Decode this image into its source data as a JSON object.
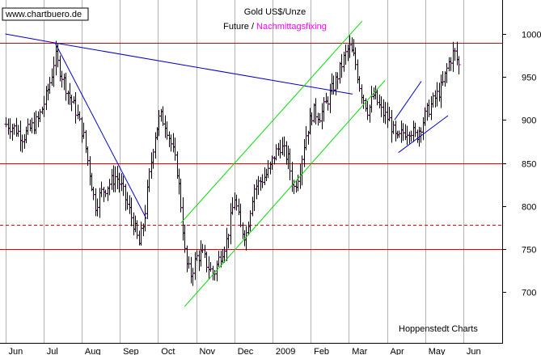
{
  "logo_text": "www.chartbuero.de",
  "credit": "Hoppenstedt Charts",
  "colors": {
    "background": "#ffffff",
    "grid": "#b4b4b4",
    "ohlc": "#000000",
    "close_marker": "#ff00ff",
    "hline": "#e00000",
    "trendline_blue": "#0000cc",
    "channel_green": "#00dd00"
  },
  "chart_data": {
    "type": "ohlc",
    "title_line1": "Gold US$/Unze",
    "title_line2_part1": "Future /",
    "title_line2_part2": "Nachmittagsfixing",
    "x_tick_labels": [
      "Jun",
      "Jul",
      "Aug",
      "Sep",
      "Oct",
      "Nov",
      "Dec",
      "2009",
      "Feb",
      "Mar",
      "Apr",
      "May",
      "Jun"
    ],
    "y_ticks": [
      700,
      750,
      800,
      850,
      900,
      950,
      1000
    ],
    "ylim": [
      640,
      1020
    ],
    "x_span_months": [
      0,
      12.6
    ],
    "grid": "vertical",
    "horizontal_levels": [
      {
        "value": 990,
        "style": "solid"
      },
      {
        "value": 850,
        "style": "solid"
      },
      {
        "value": 778,
        "style": "dashed"
      },
      {
        "value": 750,
        "style": "solid"
      }
    ],
    "trendlines": [
      {
        "color": "blue",
        "points": [
          [
            0.0,
            1000
          ],
          [
            1.25,
            990
          ],
          [
            9.1,
            930
          ]
        ]
      },
      {
        "color": "blue",
        "points": [
          [
            1.3,
            990
          ],
          [
            3.7,
            785
          ]
        ]
      },
      {
        "color": "blue",
        "points": [
          [
            10.2,
            900
          ],
          [
            10.9,
            945
          ]
        ]
      },
      {
        "color": "blue",
        "points": [
          [
            10.3,
            862
          ],
          [
            11.6,
            905
          ]
        ]
      },
      {
        "color": "green",
        "points": [
          [
            4.6,
            780
          ],
          [
            9.35,
            1015
          ]
        ]
      },
      {
        "color": "green",
        "points": [
          [
            4.7,
            683
          ],
          [
            9.95,
            946
          ]
        ]
      }
    ],
    "weekly_closes": [
      {
        "x": 0.05,
        "v": 895
      },
      {
        "x": 0.25,
        "v": 890
      },
      {
        "x": 0.45,
        "v": 880
      },
      {
        "x": 0.65,
        "v": 890
      },
      {
        "x": 0.85,
        "v": 900
      },
      {
        "x": 1.05,
        "v": 925
      },
      {
        "x": 1.2,
        "v": 950
      },
      {
        "x": 1.3,
        "v": 975
      },
      {
        "x": 1.45,
        "v": 955
      },
      {
        "x": 1.65,
        "v": 930
      },
      {
        "x": 1.85,
        "v": 910
      },
      {
        "x": 2.05,
        "v": 880
      },
      {
        "x": 2.2,
        "v": 840
      },
      {
        "x": 2.35,
        "v": 800
      },
      {
        "x": 2.5,
        "v": 815
      },
      {
        "x": 2.7,
        "v": 825
      },
      {
        "x": 2.9,
        "v": 835
      },
      {
        "x": 3.05,
        "v": 820
      },
      {
        "x": 3.2,
        "v": 800
      },
      {
        "x": 3.35,
        "v": 780
      },
      {
        "x": 3.5,
        "v": 755
      },
      {
        "x": 3.62,
        "v": 780
      },
      {
        "x": 3.75,
        "v": 830
      },
      {
        "x": 3.9,
        "v": 880
      },
      {
        "x": 4.05,
        "v": 905
      },
      {
        "x": 4.2,
        "v": 895
      },
      {
        "x": 4.35,
        "v": 870
      },
      {
        "x": 4.5,
        "v": 840
      },
      {
        "x": 4.6,
        "v": 800
      },
      {
        "x": 4.72,
        "v": 735
      },
      {
        "x": 4.85,
        "v": 720
      },
      {
        "x": 5.0,
        "v": 740
      },
      {
        "x": 5.15,
        "v": 745
      },
      {
        "x": 5.3,
        "v": 730
      },
      {
        "x": 5.45,
        "v": 720
      },
      {
        "x": 5.6,
        "v": 740
      },
      {
        "x": 5.8,
        "v": 760
      },
      {
        "x": 6.0,
        "v": 810
      },
      {
        "x": 6.15,
        "v": 775
      },
      {
        "x": 6.3,
        "v": 765
      },
      {
        "x": 6.5,
        "v": 820
      },
      {
        "x": 6.7,
        "v": 830
      },
      {
        "x": 6.9,
        "v": 840
      },
      {
        "x": 7.05,
        "v": 860
      },
      {
        "x": 7.2,
        "v": 870
      },
      {
        "x": 7.4,
        "v": 855
      },
      {
        "x": 7.55,
        "v": 820
      },
      {
        "x": 7.7,
        "v": 840
      },
      {
        "x": 7.85,
        "v": 880
      },
      {
        "x": 8.05,
        "v": 910
      },
      {
        "x": 8.25,
        "v": 905
      },
      {
        "x": 8.45,
        "v": 925
      },
      {
        "x": 8.65,
        "v": 945
      },
      {
        "x": 8.85,
        "v": 970
      },
      {
        "x": 9.0,
        "v": 985
      },
      {
        "x": 9.15,
        "v": 970
      },
      {
        "x": 9.3,
        "v": 935
      },
      {
        "x": 9.5,
        "v": 910
      },
      {
        "x": 9.65,
        "v": 930
      },
      {
        "x": 9.85,
        "v": 910
      },
      {
        "x": 10.05,
        "v": 900
      },
      {
        "x": 10.25,
        "v": 875
      },
      {
        "x": 10.4,
        "v": 885
      },
      {
        "x": 10.6,
        "v": 890
      },
      {
        "x": 10.75,
        "v": 880
      },
      {
        "x": 10.9,
        "v": 895
      },
      {
        "x": 11.05,
        "v": 910
      },
      {
        "x": 11.25,
        "v": 925
      },
      {
        "x": 11.45,
        "v": 940
      },
      {
        "x": 11.6,
        "v": 965
      },
      {
        "x": 11.75,
        "v": 980
      },
      {
        "x": 11.9,
        "v": 960
      }
    ]
  }
}
